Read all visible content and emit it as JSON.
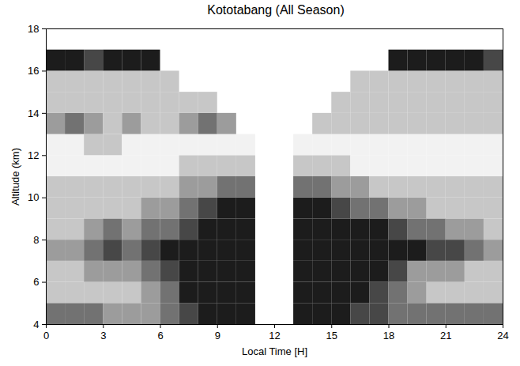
{
  "chart_data": {
    "type": "heatmap",
    "title": "Kototabang (All Season)",
    "xlabel": "Local Time [H]",
    "ylabel": "Altitude (km)",
    "xlim": [
      0,
      24
    ],
    "ylim": [
      4,
      18
    ],
    "xticks": [
      0,
      3,
      6,
      9,
      12,
      15,
      18,
      21,
      24
    ],
    "yticks": [
      4,
      6,
      8,
      10,
      12,
      14,
      16,
      18
    ],
    "x_bins": [
      0,
      1,
      2,
      3,
      4,
      5,
      6,
      7,
      8,
      9,
      10,
      11,
      12,
      13,
      14,
      15,
      16,
      17,
      18,
      19,
      20,
      21,
      22,
      23,
      24
    ],
    "y_bins": [
      4,
      5,
      6,
      7,
      8,
      9,
      10,
      11,
      12,
      13,
      14,
      15,
      16,
      17,
      18
    ],
    "zlim": [
      0,
      5
    ],
    "cells": [
      [
        3,
        3,
        3,
        2,
        2,
        2,
        3,
        4,
        5,
        5,
        5,
        null,
        null,
        5,
        5,
        5,
        4,
        4,
        3,
        3,
        3,
        3,
        3,
        3
      ],
      [
        1,
        1,
        1,
        1,
        1,
        2,
        3,
        5,
        5,
        5,
        5,
        null,
        null,
        5,
        5,
        5,
        5,
        4,
        3,
        2,
        1,
        1,
        1,
        1
      ],
      [
        1,
        1,
        2,
        2,
        2,
        3,
        4,
        5,
        5,
        5,
        5,
        null,
        null,
        5,
        5,
        5,
        5,
        5,
        4,
        2,
        2,
        2,
        1,
        1
      ],
      [
        2,
        2,
        3,
        4,
        3,
        4,
        5,
        5,
        5,
        5,
        5,
        null,
        null,
        5,
        5,
        5,
        5,
        5,
        5,
        5,
        4,
        4,
        3,
        2
      ],
      [
        1,
        1,
        2,
        3,
        2,
        3,
        3,
        4,
        5,
        5,
        5,
        null,
        null,
        5,
        5,
        5,
        5,
        5,
        4,
        3,
        3,
        2,
        2,
        1
      ],
      [
        1,
        1,
        1,
        1,
        1,
        2,
        2,
        3,
        4,
        5,
        5,
        null,
        null,
        5,
        5,
        4,
        3,
        3,
        2,
        2,
        1,
        1,
        1,
        1
      ],
      [
        1,
        1,
        1,
        1,
        1,
        1,
        1,
        2,
        2,
        3,
        3,
        null,
        null,
        3,
        3,
        2,
        2,
        1,
        1,
        1,
        1,
        1,
        1,
        1
      ],
      [
        0,
        0,
        0,
        0,
        0,
        0,
        0,
        1,
        1,
        1,
        1,
        null,
        null,
        1,
        1,
        1,
        0,
        0,
        0,
        0,
        0,
        0,
        0,
        0
      ],
      [
        0,
        0,
        1,
        1,
        0,
        0,
        0,
        0,
        0,
        0,
        0,
        null,
        null,
        0,
        0,
        0,
        0,
        0,
        0,
        0,
        0,
        0,
        0,
        0
      ],
      [
        2,
        3,
        2,
        1,
        2,
        1,
        1,
        2,
        3,
        2,
        null,
        null,
        null,
        null,
        1,
        1,
        1,
        1,
        1,
        1,
        1,
        1,
        1,
        1
      ],
      [
        1,
        1,
        1,
        1,
        1,
        1,
        1,
        1,
        1,
        null,
        null,
        null,
        null,
        null,
        null,
        1,
        1,
        1,
        1,
        1,
        1,
        1,
        1,
        1
      ],
      [
        1,
        1,
        1,
        1,
        1,
        1,
        1,
        null,
        null,
        null,
        null,
        null,
        null,
        null,
        null,
        null,
        1,
        1,
        1,
        1,
        1,
        1,
        1,
        1
      ],
      [
        5,
        5,
        4,
        5,
        5,
        5,
        null,
        null,
        null,
        null,
        null,
        null,
        null,
        null,
        null,
        null,
        null,
        null,
        5,
        5,
        5,
        5,
        5,
        4
      ],
      [
        null,
        null,
        null,
        null,
        null,
        null,
        null,
        null,
        null,
        null,
        null,
        null,
        null,
        null,
        null,
        null,
        null,
        null,
        null,
        null,
        null,
        null,
        null,
        null
      ]
    ]
  }
}
